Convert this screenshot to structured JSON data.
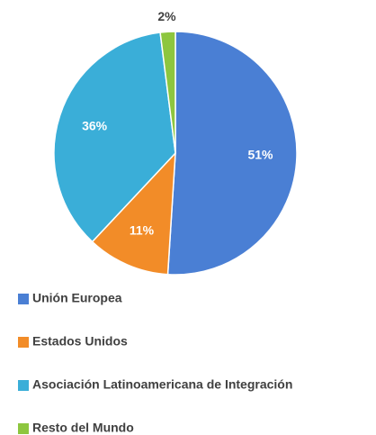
{
  "chart_data": {
    "type": "pie",
    "categories": [
      "Unión Europea",
      "Estados Unidos",
      "Asociación Latinoamericana de Integración",
      "Resto del Mundo"
    ],
    "values": [
      51,
      11,
      36,
      2
    ],
    "value_labels": [
      "51%",
      "11%",
      "36%",
      "2%"
    ],
    "colors": [
      "#4a7fd4",
      "#f28c28",
      "#3aaed8",
      "#8dc63f"
    ],
    "legend": "bottom"
  }
}
